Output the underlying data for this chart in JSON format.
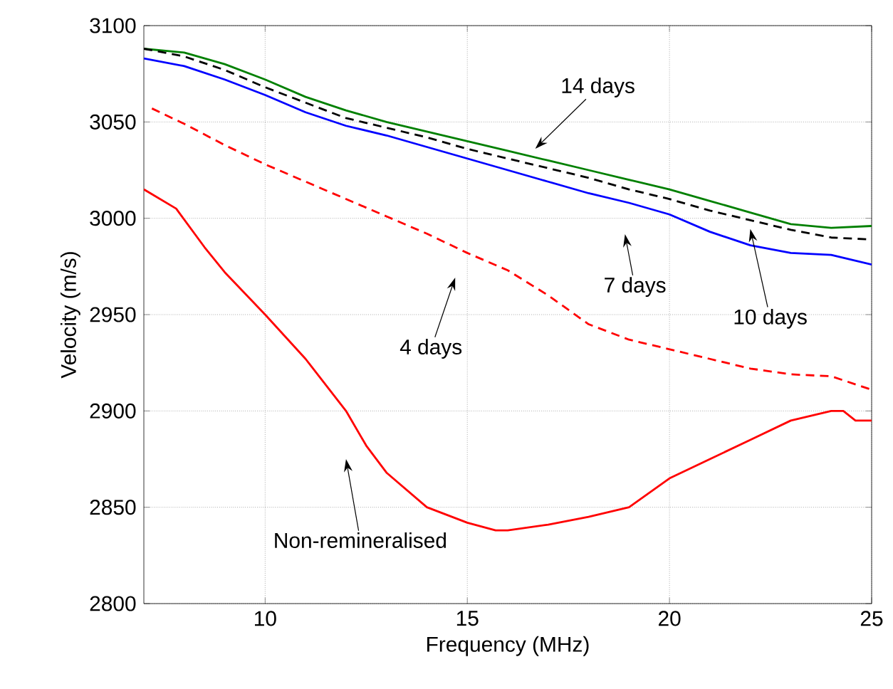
{
  "chart_data": {
    "type": "line",
    "xlabel": "Frequency (MHz)",
    "ylabel": "Velocity (m/s)",
    "xlim": [
      7,
      25
    ],
    "ylim": [
      2800,
      3100
    ],
    "xticks": [
      10,
      15,
      20,
      25
    ],
    "yticks": [
      2800,
      2850,
      2900,
      2950,
      3000,
      3050,
      3100
    ],
    "grid": true,
    "series": [
      {
        "color": "#008000",
        "line_style": "solid",
        "x": [
          7,
          8,
          9,
          10,
          11,
          12,
          13,
          14,
          15,
          16,
          17,
          18,
          19,
          20,
          21,
          22,
          23,
          24,
          25
        ],
        "values": [
          3088,
          3086,
          3080,
          3072,
          3063,
          3056,
          3050,
          3045,
          3040,
          3035,
          3030,
          3025,
          3020,
          3015,
          3009,
          3003,
          2997,
          2995,
          2996
        ]
      },
      {
        "color": "#000000",
        "line_style": "dashed",
        "x": [
          7,
          8,
          9,
          10,
          11,
          12,
          13,
          14,
          15,
          16,
          17,
          18,
          19,
          20,
          21,
          22,
          23,
          24,
          25
        ],
        "values": [
          3088,
          3084,
          3077,
          3068,
          3060,
          3052,
          3047,
          3042,
          3036,
          3031,
          3026,
          3021,
          3015,
          3010,
          3004,
          2999,
          2994,
          2990,
          2989
        ]
      },
      {
        "color": "#0000ff",
        "line_style": "solid",
        "x": [
          7,
          8,
          9,
          10,
          11,
          12,
          13,
          14,
          15,
          16,
          17,
          18,
          19,
          20,
          21,
          22,
          23,
          24,
          25
        ],
        "values": [
          3083,
          3079,
          3072,
          3064,
          3055,
          3048,
          3043,
          3037,
          3031,
          3025,
          3019,
          3013,
          3008,
          3002,
          2993,
          2986,
          2982,
          2981,
          2976
        ]
      },
      {
        "color": "#ff0000",
        "line_style": "dashed",
        "x": [
          7.2,
          8,
          9,
          10,
          11,
          12,
          13,
          14,
          15,
          16,
          17,
          18,
          19,
          20,
          21,
          22,
          23,
          24,
          25
        ],
        "values": [
          3057,
          3049,
          3038,
          3028,
          3019,
          3010,
          3001,
          2992,
          2982,
          2973,
          2960,
          2945,
          2937,
          2932,
          2927,
          2922,
          2919,
          2918,
          2911
        ]
      },
      {
        "color": "#ff0000",
        "line_style": "solid",
        "x": [
          7,
          7.8,
          8.5,
          9,
          10,
          11,
          12,
          12.5,
          13,
          14,
          15,
          15.7,
          16,
          17,
          18,
          19,
          20,
          21,
          22,
          23,
          24,
          24.3,
          24.6,
          25
        ],
        "values": [
          3015,
          3005,
          2985,
          2972,
          2950,
          2927,
          2900,
          2882,
          2868,
          2850,
          2842,
          2838,
          2838,
          2841,
          2845,
          2850,
          2865,
          2875,
          2885,
          2895,
          2900,
          2900,
          2895,
          2895
        ]
      }
    ],
    "annotations": [
      "14 days",
      "7 days",
      "10 days",
      "4 days",
      "Non-remineralised"
    ]
  }
}
